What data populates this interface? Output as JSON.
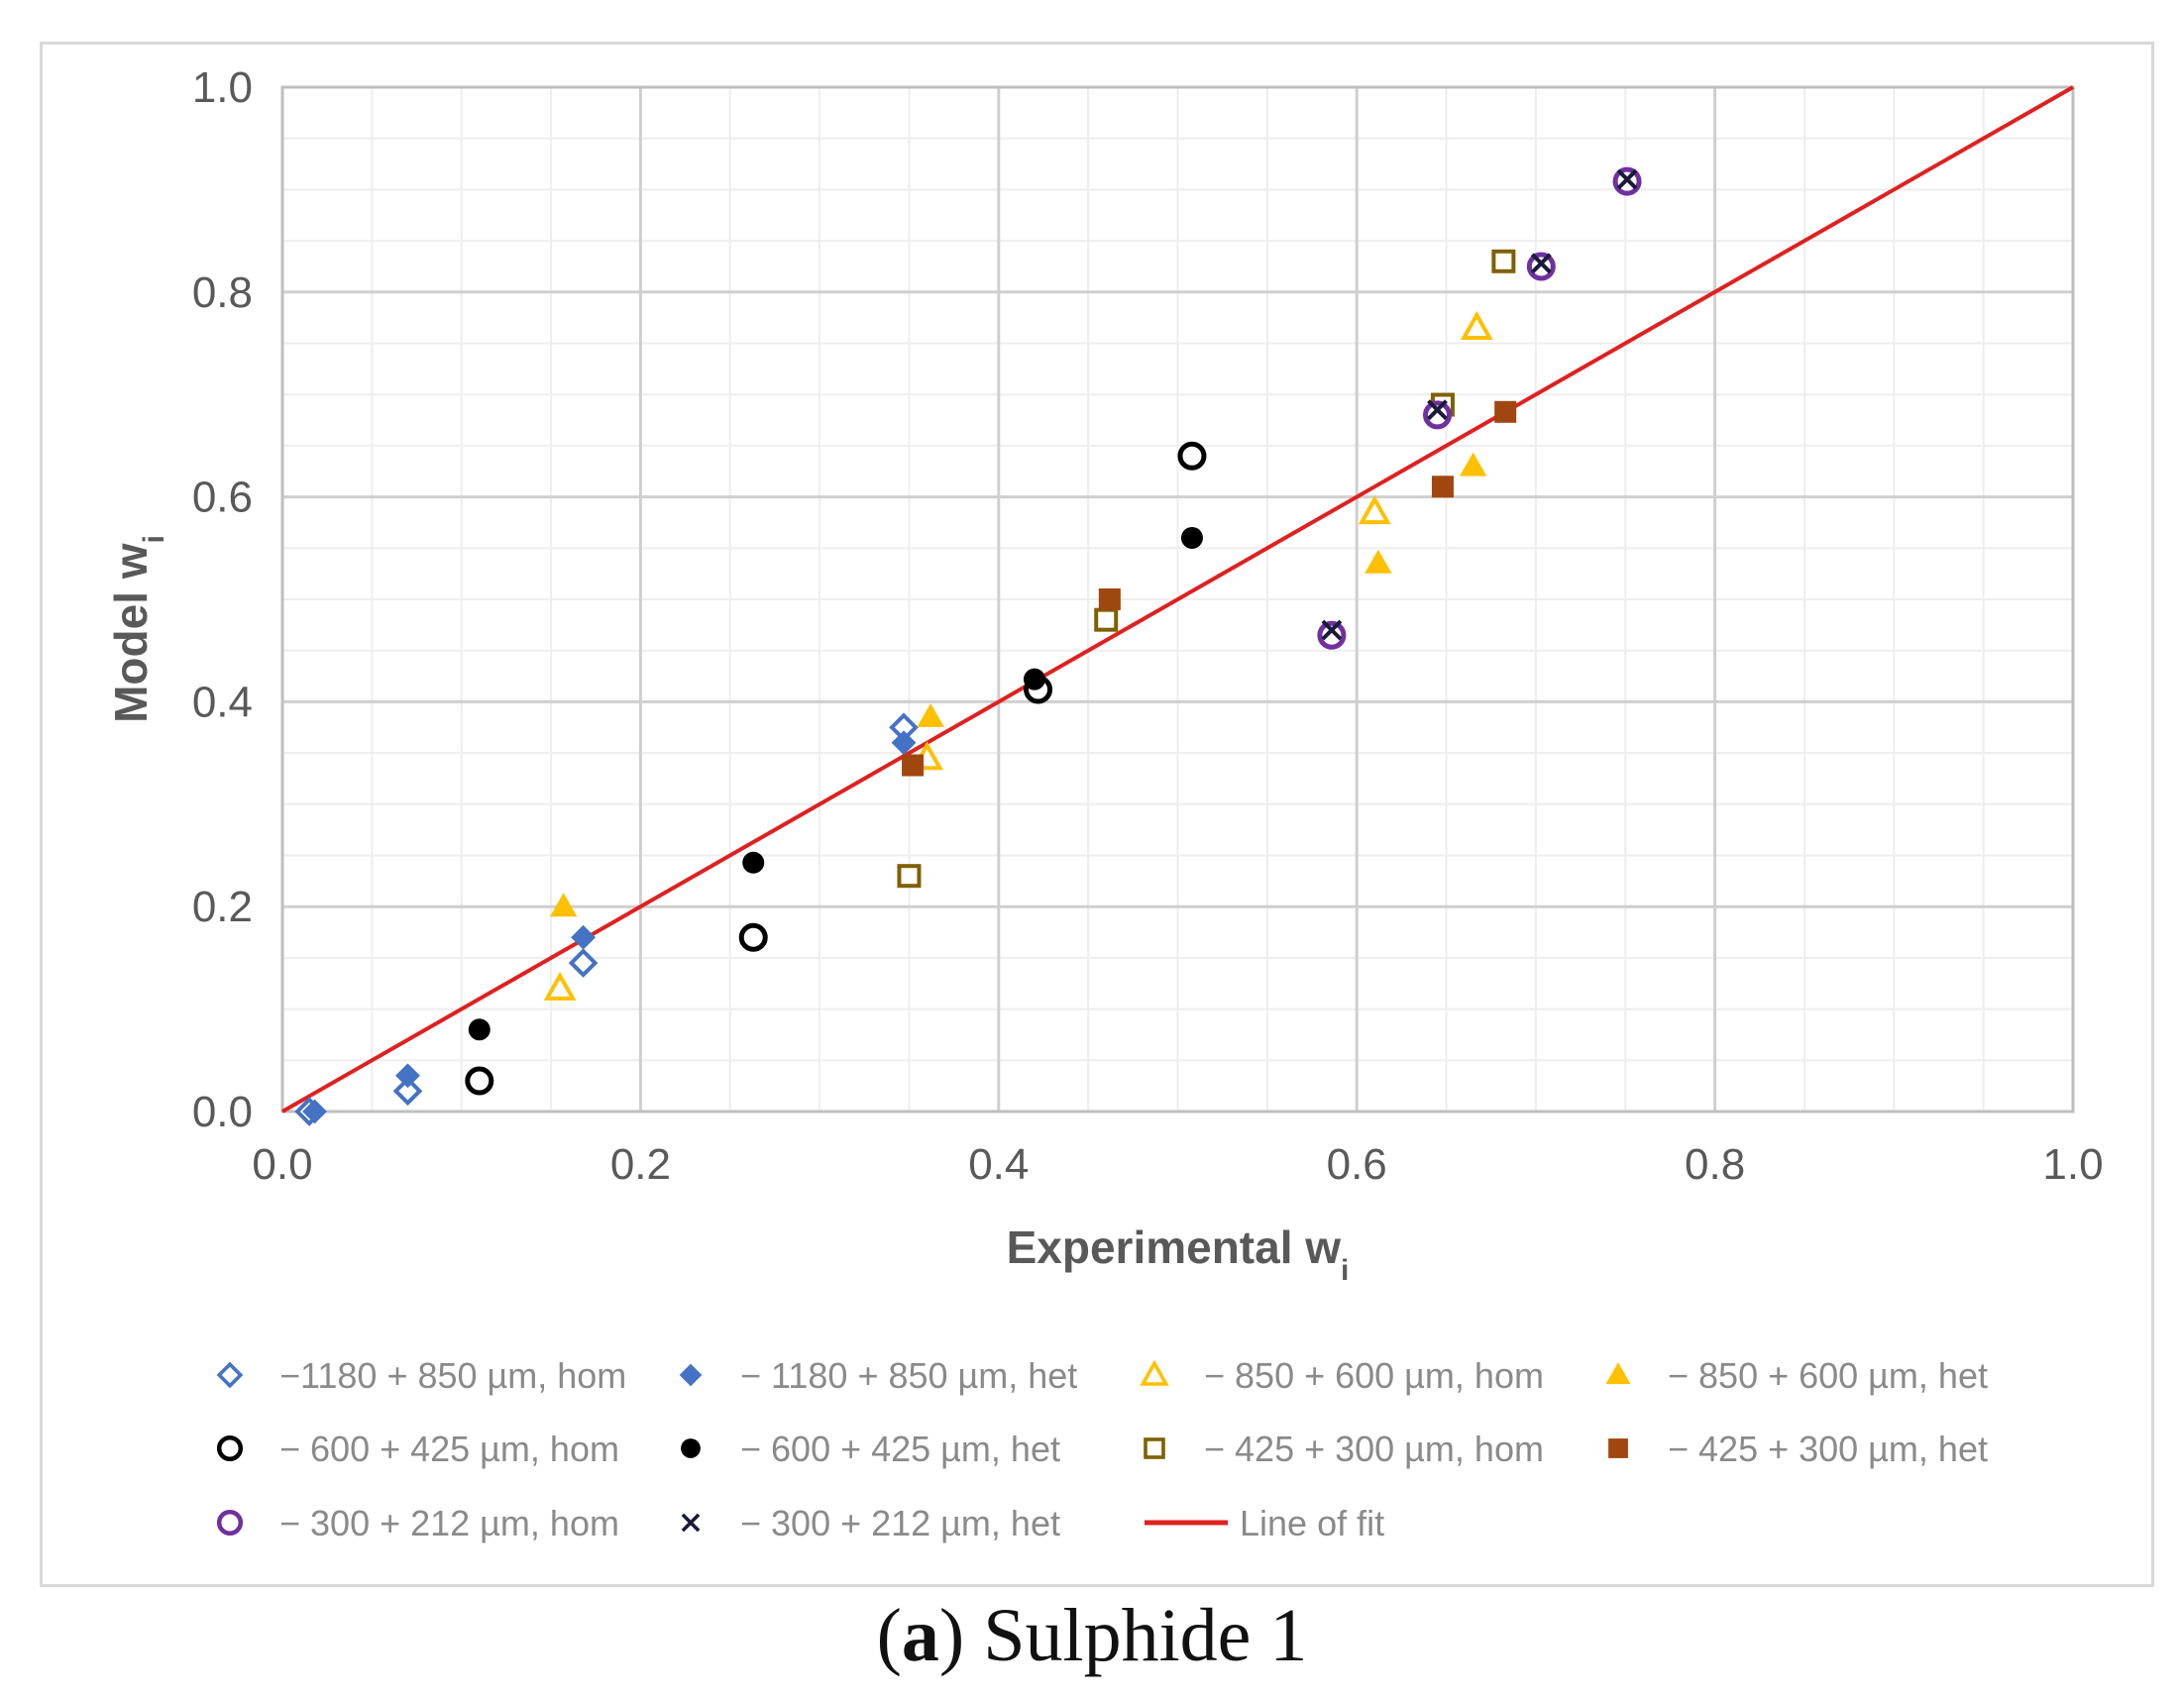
{
  "caption": {
    "letter": "a",
    "text": "Sulphide 1"
  },
  "chart_data": {
    "type": "scatter",
    "title": "",
    "xlabel": "Experimental w",
    "xlabel_sub": "i",
    "ylabel": "Model w",
    "ylabel_sub": "i",
    "xlim": [
      0.0,
      1.0
    ],
    "ylim": [
      0.0,
      1.0
    ],
    "xticks": [
      "0.0",
      "0.2",
      "0.4",
      "0.6",
      "0.8",
      "1.0"
    ],
    "yticks": [
      "0.0",
      "0.2",
      "0.4",
      "0.6",
      "0.8",
      "1.0"
    ],
    "grid": true,
    "legend_position": "bottom",
    "series": [
      {
        "name": "−1180 + 850 µm, hom",
        "marker": "diamond-open",
        "color": "#4472c4",
        "points": [
          [
            0.015,
            0.0
          ],
          [
            0.07,
            0.02
          ],
          [
            0.168,
            0.145
          ],
          [
            0.347,
            0.375
          ]
        ]
      },
      {
        "name": "− 1180 + 850 µm, het",
        "marker": "diamond-filled",
        "color": "#4472c4",
        "points": [
          [
            0.018,
            0.0
          ],
          [
            0.07,
            0.035
          ],
          [
            0.168,
            0.17
          ],
          [
            0.347,
            0.36
          ]
        ]
      },
      {
        "name": "− 850 + 600 µm, hom",
        "marker": "triangle-open",
        "color": "#ffc000",
        "points": [
          [
            0.155,
            0.12
          ],
          [
            0.36,
            0.345
          ],
          [
            0.61,
            0.585
          ],
          [
            0.667,
            0.765
          ]
        ]
      },
      {
        "name": "− 850 + 600 µm, het",
        "marker": "triangle-filled",
        "color": "#ffc000",
        "points": [
          [
            0.157,
            0.2
          ],
          [
            0.362,
            0.385
          ],
          [
            0.612,
            0.535
          ],
          [
            0.665,
            0.63
          ]
        ]
      },
      {
        "name": "− 600 + 425 µm, hom",
        "marker": "circle-open",
        "color": "#000000",
        "points": [
          [
            0.11,
            0.03
          ],
          [
            0.263,
            0.17
          ],
          [
            0.422,
            0.412
          ],
          [
            0.508,
            0.64
          ]
        ]
      },
      {
        "name": "− 600 + 425 µm, het",
        "marker": "circle-filled",
        "color": "#000000",
        "points": [
          [
            0.11,
            0.08
          ],
          [
            0.263,
            0.243
          ],
          [
            0.42,
            0.422
          ],
          [
            0.508,
            0.56
          ]
        ]
      },
      {
        "name": "− 425 + 300 µm, hom",
        "marker": "square-open",
        "color": "#7f6000",
        "points": [
          [
            0.35,
            0.23
          ],
          [
            0.46,
            0.48
          ],
          [
            0.648,
            0.69
          ],
          [
            0.682,
            0.83
          ]
        ]
      },
      {
        "name": "− 425 + 300 µm, het",
        "marker": "square-filled",
        "color": "#a0460f",
        "points": [
          [
            0.352,
            0.338
          ],
          [
            0.462,
            0.5
          ],
          [
            0.648,
            0.61
          ],
          [
            0.683,
            0.683
          ]
        ]
      },
      {
        "name": "− 300 + 212 µm, hom",
        "marker": "circle-open",
        "color": "#7030a0",
        "points": [
          [
            0.586,
            0.465
          ],
          [
            0.645,
            0.68
          ],
          [
            0.703,
            0.825
          ],
          [
            0.751,
            0.908
          ]
        ]
      },
      {
        "name": "− 300 + 212 µm, het",
        "marker": "x",
        "color": "#1a1a3a",
        "points": [
          [
            0.586,
            0.47
          ],
          [
            0.645,
            0.685
          ],
          [
            0.703,
            0.828
          ],
          [
            0.751,
            0.91
          ]
        ]
      },
      {
        "name": "Line of fit",
        "marker": "line",
        "color": "#e02020",
        "points": [
          [
            0.0,
            0.0
          ],
          [
            1.0,
            1.0
          ]
        ]
      }
    ]
  }
}
